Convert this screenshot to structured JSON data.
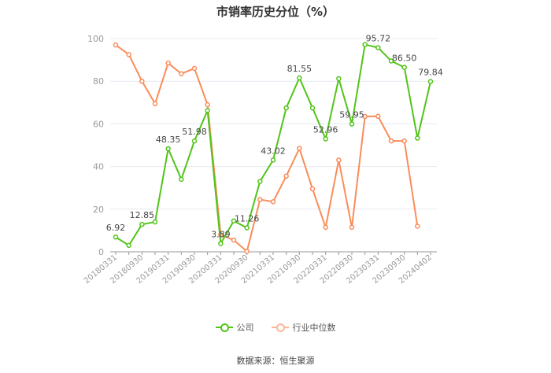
{
  "chart_data": {
    "type": "line",
    "title": "市销率历史分位（%）",
    "ylim": [
      0,
      100
    ],
    "yticks": [
      0,
      20,
      40,
      60,
      80,
      100
    ],
    "x": [
      "20180331",
      "20180630",
      "20180930",
      "20181231",
      "20190331",
      "20190630",
      "20190930",
      "20191231",
      "20200331",
      "20200630",
      "20200930",
      "20201231",
      "20210331",
      "20210630",
      "20210930",
      "20211231",
      "20220331",
      "20220630",
      "20220930",
      "20221231",
      "20230331",
      "20230630",
      "20230930",
      "20231231",
      "20240402"
    ],
    "xtick_labels": [
      "20180331",
      "20180930",
      "20190331",
      "20190930",
      "20200331",
      "20200930",
      "20210331",
      "20210930",
      "20220331",
      "20220930",
      "20230331",
      "20230930",
      "20240402"
    ],
    "series": [
      {
        "name": "公司",
        "color": "#52c41a",
        "values": [
          6.92,
          3,
          12.85,
          14,
          48.35,
          34,
          51.98,
          66.3,
          3.89,
          14.5,
          11.26,
          33,
          43.02,
          67.5,
          81.55,
          67.5,
          52.96,
          81.2,
          59.95,
          97.2,
          95.72,
          89.5,
          86.5,
          53.3,
          79.84
        ],
        "labels": [
          "6.92",
          null,
          "12.85",
          null,
          "48.35",
          null,
          "51.98",
          null,
          "3.89",
          null,
          "11.26",
          null,
          "43.02",
          null,
          "81.55",
          null,
          "52.96",
          null,
          "59.95",
          null,
          "95.72",
          null,
          "86.50",
          null,
          "79.84"
        ]
      },
      {
        "name": "行业中位数",
        "color": "#fa8c5a",
        "values": [
          97,
          92.5,
          80,
          69.5,
          88.5,
          83.5,
          86,
          69,
          8,
          5.5,
          0.2,
          24.5,
          23.5,
          35.5,
          48.5,
          29.5,
          11.5,
          43,
          11.5,
          63.5,
          63.5,
          52,
          52,
          12,
          null
        ]
      }
    ],
    "legend_position": "bottom",
    "grid": true
  },
  "source": "数据来源：恒生聚源"
}
